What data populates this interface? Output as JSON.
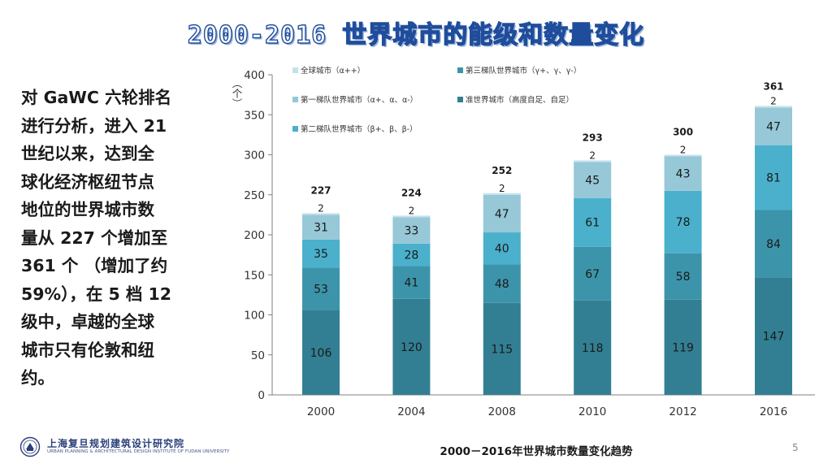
{
  "slide": {
    "title": "2000-2016 世界城市的能级和数量变化",
    "side_text": "对 GaWC 六轮排名\n进行分析，进入 21\n世纪以来，达到全\n球化经济枢纽节点\n地位的世界城市数\n量从 227 个增加至\n361 个 （增加了约\n59%），在 5 档 12\n级中，卓越的全球\n城市只有伦敦和纽\n约。",
    "caption": "2000－2016年世界城市数量变化趋势",
    "page_number": "5",
    "logo": {
      "cn": "上海复旦规划建筑设计研究院",
      "en": "URBAN PLANNING & ARCHITECTURAL DESIGN INSTITUTE OF FUDAN UNIVERSITY",
      "icon": "fudan-emblem-icon"
    }
  },
  "chart_data": {
    "type": "bar",
    "stacked": true,
    "categories": [
      "2000",
      "2004",
      "2008",
      "2010",
      "2012",
      "2016"
    ],
    "ylabel": "（个）",
    "ylim": [
      0,
      400
    ],
    "yticks": [
      0,
      50,
      100,
      150,
      200,
      250,
      300,
      350,
      400
    ],
    "grid": false,
    "legend_position": "top",
    "series": [
      {
        "name": "准世界城市（高度自足、自足）",
        "color": "#327f93",
        "values": [
          106,
          120,
          115,
          118,
          119,
          147
        ]
      },
      {
        "name": "第三梯队世界城市（γ+、γ、γ-）",
        "color": "#3c94ab",
        "values": [
          53,
          41,
          48,
          67,
          58,
          84
        ]
      },
      {
        "name": "第二梯队世界城市（β+、β、β-）",
        "color": "#4ab0cc",
        "values": [
          35,
          28,
          40,
          61,
          78,
          81
        ]
      },
      {
        "name": "第一梯队世界城市（α+、α、α-）",
        "color": "#96c8d7",
        "values": [
          31,
          33,
          47,
          45,
          43,
          47
        ]
      },
      {
        "name": "全球城市（α++）",
        "color": "#c4e1ec",
        "values": [
          2,
          2,
          2,
          2,
          2,
          2
        ]
      }
    ],
    "totals": [
      227,
      224,
      252,
      293,
      300,
      361
    ]
  }
}
